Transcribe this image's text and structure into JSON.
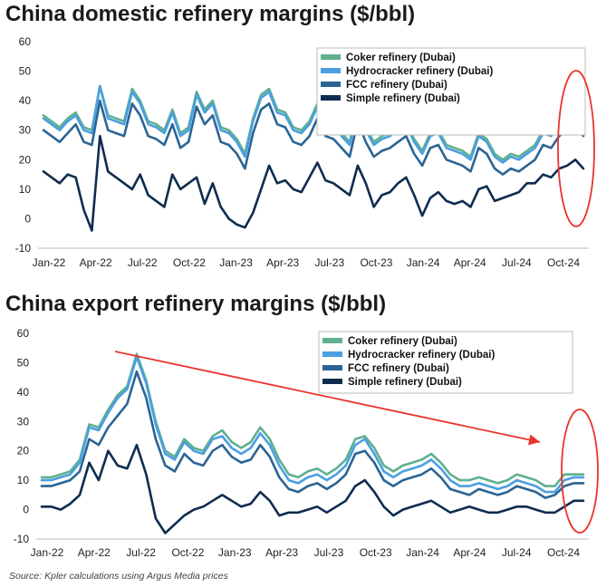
{
  "colors": {
    "coker": "#5fb08e",
    "hydrocracker": "#4a9fe0",
    "fcc": "#2b6494",
    "simple": "#0f2c4f",
    "annotation": "#e8342c",
    "axis": "#bbbbbb"
  },
  "source": "Source: Kpler calculations using Argus Media prices",
  "chart_data": [
    {
      "type": "line",
      "title": "China domestic refinery margins ($/bbl)",
      "xlabel": "",
      "ylabel": "",
      "ylim": [
        -10,
        60
      ],
      "yticks": [
        -10,
        0,
        10,
        20,
        30,
        40,
        50,
        60
      ],
      "xticks": [
        "Jan-22",
        "Apr-22",
        "Jul-22",
        "Oct-22",
        "Jan-23",
        "Apr-23",
        "Jul-23",
        "Oct-23",
        "Jan-24",
        "Apr-24",
        "Jul-24",
        "Oct-24"
      ],
      "legend_position": "top-right",
      "series": [
        {
          "name": "Coker refinery (Dubai)",
          "color_key": "coker",
          "values": [
            35,
            33,
            31,
            34,
            36,
            31,
            30,
            45,
            35,
            34,
            33,
            44,
            40,
            33,
            32,
            30,
            37,
            29,
            31,
            43,
            37,
            40,
            31,
            30,
            27,
            22,
            34,
            42,
            44,
            37,
            36,
            31,
            30,
            33,
            39,
            33,
            32,
            29,
            26,
            38,
            31,
            26,
            28,
            29,
            31,
            33,
            27,
            23,
            29,
            30,
            25,
            24,
            23,
            21,
            29,
            27,
            22,
            20,
            22,
            21,
            23,
            25,
            30,
            29,
            33,
            35,
            37,
            33
          ]
        },
        {
          "name": "Hydrocracker refinery (Dubai)",
          "color_key": "hydrocracker",
          "values": [
            34,
            32,
            30,
            33,
            35,
            30,
            29,
            45,
            34,
            33,
            32,
            43,
            39,
            32,
            31,
            29,
            36,
            28,
            30,
            42,
            36,
            39,
            30,
            29,
            26,
            21,
            33,
            41,
            43,
            36,
            35,
            30,
            29,
            32,
            38,
            32,
            31,
            28,
            25,
            37,
            30,
            25,
            27,
            28,
            30,
            32,
            26,
            22,
            28,
            29,
            24,
            23,
            22,
            20,
            28,
            26,
            21,
            19,
            21,
            20,
            22,
            24,
            29,
            28,
            32,
            34,
            36,
            32
          ]
        },
        {
          "name": "FCC refinery (Dubai)",
          "color_key": "fcc",
          "values": [
            30,
            28,
            26,
            29,
            32,
            26,
            25,
            40,
            30,
            29,
            28,
            39,
            35,
            28,
            27,
            25,
            32,
            24,
            26,
            38,
            32,
            35,
            26,
            25,
            22,
            17,
            29,
            37,
            39,
            32,
            31,
            26,
            25,
            28,
            34,
            28,
            27,
            24,
            21,
            33,
            26,
            21,
            23,
            24,
            26,
            28,
            22,
            18,
            24,
            25,
            20,
            19,
            18,
            16,
            24,
            22,
            17,
            15,
            17,
            16,
            18,
            20,
            25,
            24,
            28,
            30,
            32,
            28
          ]
        },
        {
          "name": "Simple refinery (Dubai)",
          "color_key": "simple",
          "values": [
            16,
            14,
            12,
            15,
            14,
            3,
            -4,
            28,
            16,
            14,
            12,
            10,
            15,
            8,
            6,
            4,
            15,
            10,
            12,
            14,
            5,
            12,
            4,
            0,
            -2,
            -3,
            2,
            10,
            18,
            12,
            13,
            10,
            9,
            14,
            19,
            13,
            12,
            10,
            8,
            18,
            12,
            4,
            8,
            9,
            12,
            14,
            8,
            1,
            7,
            9,
            6,
            5,
            6,
            4,
            10,
            11,
            6,
            7,
            8,
            9,
            12,
            12,
            15,
            14,
            17,
            18,
            20,
            17
          ]
        }
      ]
    },
    {
      "type": "line",
      "title": "China export refinery  margins ($/bbl)",
      "xlabel": "",
      "ylabel": "",
      "ylim": [
        -10,
        60
      ],
      "yticks": [
        -10,
        0,
        10,
        20,
        30,
        40,
        50,
        60
      ],
      "xticks": [
        "Jan-22",
        "Apr-22",
        "Jul-22",
        "Oct-22",
        "Jan-23",
        "Apr-23",
        "Jul-23",
        "Oct-23",
        "Jan-24",
        "Apr-24",
        "Jul-24",
        "Oct-24"
      ],
      "legend_position": "top-right",
      "series": [
        {
          "name": "Coker refinery (Dubai)",
          "color_key": "coker",
          "values": [
            11,
            11,
            12,
            13,
            17,
            29,
            28,
            34,
            39,
            42,
            53,
            44,
            30,
            20,
            18,
            24,
            21,
            20,
            25,
            27,
            23,
            21,
            23,
            28,
            24,
            17,
            12,
            11,
            13,
            14,
            12,
            14,
            17,
            24,
            25,
            21,
            15,
            13,
            15,
            16,
            17,
            19,
            16,
            12,
            10,
            10,
            11,
            10,
            9,
            10,
            12,
            11,
            10,
            8,
            8,
            12,
            12,
            12
          ]
        },
        {
          "name": "Hydrocracker refinery (Dubai)",
          "color_key": "hydrocracker",
          "values": [
            10,
            10,
            11,
            12,
            16,
            28,
            27,
            33,
            38,
            41,
            52,
            43,
            29,
            19,
            17,
            23,
            20,
            19,
            24,
            25,
            21,
            19,
            21,
            26,
            22,
            15,
            10,
            9,
            11,
            12,
            10,
            12,
            15,
            22,
            24,
            19,
            13,
            11,
            13,
            14,
            15,
            17,
            14,
            10,
            8,
            8,
            9,
            8,
            7,
            8,
            10,
            9,
            8,
            6,
            6,
            10,
            11,
            11
          ]
        },
        {
          "name": "FCC refinery (Dubai)",
          "color_key": "fcc",
          "values": [
            8,
            8,
            9,
            10,
            13,
            24,
            22,
            28,
            32,
            36,
            47,
            38,
            24,
            15,
            13,
            19,
            16,
            15,
            20,
            22,
            18,
            16,
            17,
            22,
            18,
            11,
            7,
            6,
            8,
            9,
            7,
            9,
            12,
            19,
            20,
            16,
            10,
            8,
            10,
            11,
            12,
            14,
            11,
            7,
            6,
            5,
            7,
            6,
            5,
            6,
            8,
            7,
            6,
            4,
            5,
            8,
            9,
            9
          ]
        },
        {
          "name": "Simple refinery (Dubai)",
          "color_key": "simple",
          "values": [
            1,
            1,
            0,
            2,
            5,
            16,
            10,
            20,
            15,
            14,
            22,
            12,
            -3,
            -8,
            -5,
            -2,
            0,
            1,
            3,
            5,
            3,
            1,
            2,
            6,
            3,
            -2,
            -1,
            -1,
            0,
            1,
            -1,
            1,
            3,
            8,
            10,
            6,
            1,
            -2,
            0,
            1,
            2,
            3,
            1,
            -1,
            0,
            1,
            0,
            -1,
            -1,
            0,
            1,
            1,
            0,
            -1,
            -1,
            1,
            3,
            3
          ]
        }
      ],
      "annotations": [
        "downward trend arrow",
        "highlight ellipse at Oct-24"
      ]
    }
  ]
}
